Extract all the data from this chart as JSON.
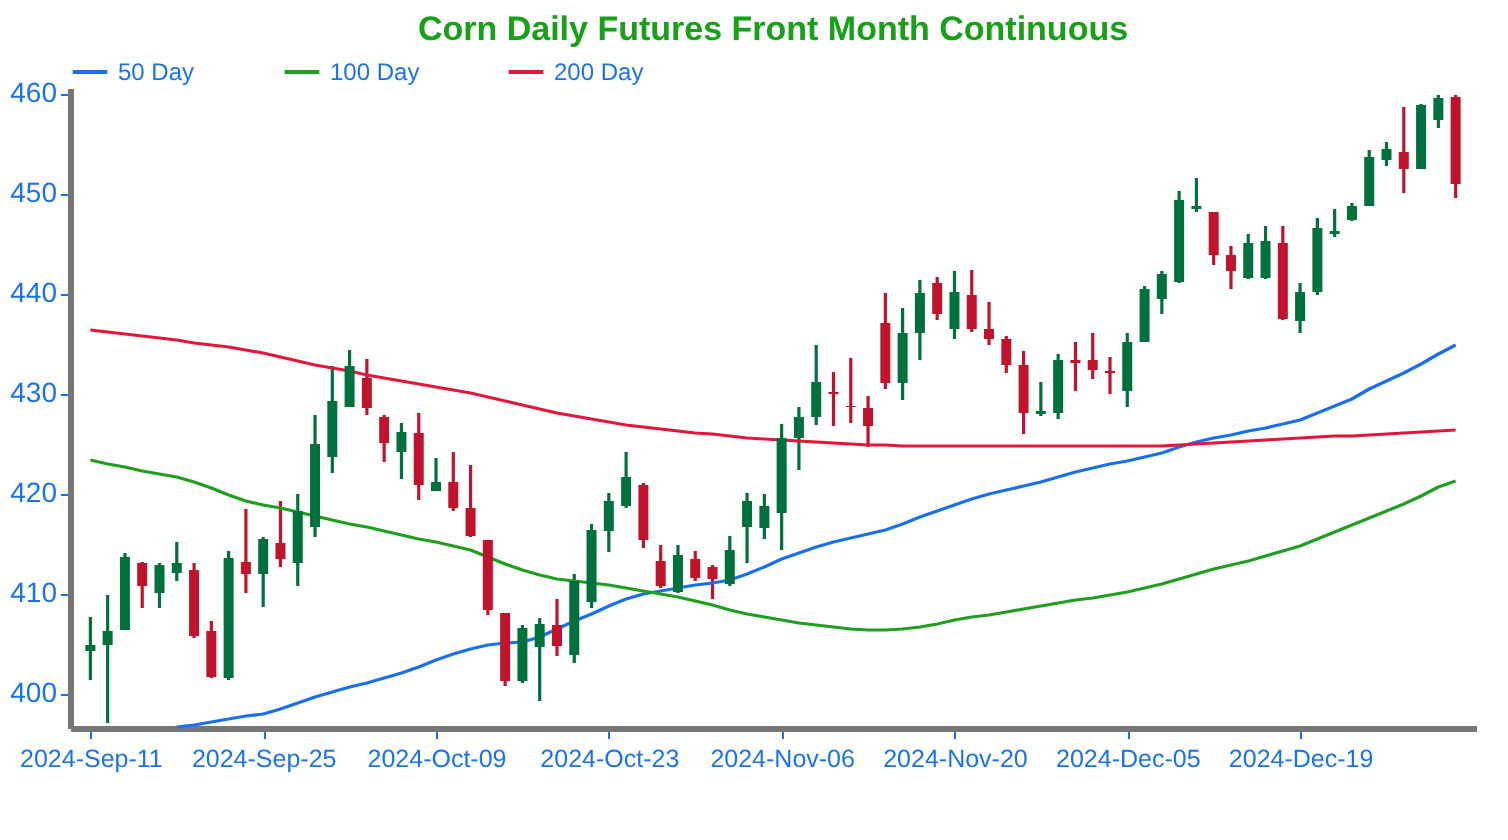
{
  "chart_data": {
    "type": "candlestick",
    "title": "Corn Daily Futures Front Month Continuous",
    "categories": [
      "2024-Sep-11",
      null,
      null,
      null,
      null,
      null,
      null,
      null,
      null,
      null,
      "2024-Sep-25",
      null,
      null,
      null,
      null,
      null,
      null,
      null,
      null,
      null,
      "2024-Oct-09",
      null,
      null,
      null,
      null,
      null,
      null,
      null,
      null,
      null,
      "2024-Oct-23",
      null,
      null,
      null,
      null,
      null,
      null,
      null,
      null,
      null,
      "2024-Nov-06",
      null,
      null,
      null,
      null,
      null,
      null,
      null,
      null,
      null,
      "2024-Nov-20",
      null,
      null,
      null,
      null,
      null,
      null,
      null,
      null,
      null,
      "2024-Dec-05",
      null,
      null,
      null,
      null,
      null,
      null,
      null,
      null,
      null,
      "2024-Dec-19",
      null,
      null,
      null,
      null,
      null,
      null,
      null,
      null,
      null
    ],
    "ohlc": [
      [
        404.2,
        407.6,
        401.3,
        404.8
      ],
      [
        404.8,
        409.8,
        397.0,
        406.2
      ],
      [
        406.3,
        414.0,
        406.3,
        413.6
      ],
      [
        413.0,
        413.1,
        408.5,
        410.7
      ],
      [
        410.0,
        413.0,
        408.5,
        412.8
      ],
      [
        412.0,
        415.1,
        411.2,
        413.0
      ],
      [
        412.3,
        413.0,
        405.5,
        405.7
      ],
      [
        406.2,
        407.2,
        401.5,
        401.6
      ],
      [
        401.5,
        414.2,
        401.3,
        413.5
      ],
      [
        413.1,
        418.4,
        410.0,
        411.9
      ],
      [
        411.9,
        415.6,
        408.6,
        415.4
      ],
      [
        415.0,
        419.2,
        412.6,
        413.4
      ],
      [
        413.0,
        419.9,
        410.7,
        418.2
      ],
      [
        416.6,
        427.8,
        415.6,
        424.9
      ],
      [
        423.6,
        432.7,
        422.0,
        429.2
      ],
      [
        428.6,
        434.3,
        428.6,
        432.7
      ],
      [
        431.5,
        433.4,
        427.8,
        428.5
      ],
      [
        427.6,
        427.8,
        423.1,
        425.0
      ],
      [
        424.1,
        427.0,
        421.4,
        426.1
      ],
      [
        426.0,
        428.0,
        419.3,
        420.8
      ],
      [
        420.2,
        423.5,
        420.2,
        421.1
      ],
      [
        421.1,
        424.1,
        418.2,
        418.5
      ],
      [
        418.5,
        422.8,
        415.6,
        415.7
      ],
      [
        415.3,
        415.3,
        407.8,
        408.3
      ],
      [
        408.0,
        408.0,
        400.7,
        401.2
      ],
      [
        401.2,
        406.8,
        401.0,
        406.5
      ],
      [
        404.6,
        407.5,
        399.2,
        406.9
      ],
      [
        406.8,
        409.4,
        403.7,
        404.7
      ],
      [
        403.8,
        411.9,
        403.0,
        411.2
      ],
      [
        409.1,
        416.9,
        408.5,
        416.3
      ],
      [
        416.2,
        420.0,
        414.1,
        419.2
      ],
      [
        418.7,
        424.1,
        418.5,
        421.6
      ],
      [
        420.8,
        421.0,
        414.5,
        415.3
      ],
      [
        413.2,
        414.8,
        410.5,
        410.7
      ],
      [
        410.1,
        414.8,
        410.0,
        413.8
      ],
      [
        413.4,
        414.2,
        411.2,
        411.5
      ],
      [
        412.6,
        412.8,
        409.4,
        411.4
      ],
      [
        410.9,
        415.7,
        410.7,
        414.3
      ],
      [
        416.6,
        420.0,
        413.0,
        419.2
      ],
      [
        416.5,
        419.9,
        415.4,
        418.7
      ],
      [
        418.0,
        426.9,
        414.3,
        425.5
      ],
      [
        425.5,
        428.6,
        422.3,
        427.6
      ],
      [
        427.6,
        434.8,
        426.8,
        431.1
      ],
      [
        430.1,
        432.1,
        426.7,
        429.9
      ],
      [
        428.7,
        433.5,
        427.0,
        428.6
      ],
      [
        428.5,
        429.7,
        424.6,
        426.7
      ],
      [
        437.0,
        440.0,
        430.4,
        431.0
      ],
      [
        431.0,
        438.5,
        429.3,
        436.0
      ],
      [
        436.0,
        441.3,
        433.3,
        440.0
      ],
      [
        441.0,
        441.6,
        437.3,
        437.9
      ],
      [
        436.4,
        442.2,
        435.4,
        440.1
      ],
      [
        439.8,
        442.3,
        436.1,
        436.4
      ],
      [
        436.4,
        439.1,
        434.8,
        435.4
      ],
      [
        435.4,
        435.7,
        432.0,
        432.8
      ],
      [
        432.8,
        434.2,
        425.9,
        428.0
      ],
      [
        427.9,
        431.1,
        427.7,
        428.2
      ],
      [
        428.0,
        433.9,
        427.4,
        433.3
      ],
      [
        433.3,
        435.1,
        430.2,
        433.0
      ],
      [
        433.3,
        436.0,
        431.4,
        432.3
      ],
      [
        432.2,
        433.6,
        429.9,
        432.0
      ],
      [
        430.2,
        436.0,
        428.6,
        435.1
      ],
      [
        435.1,
        440.7,
        435.1,
        440.4
      ],
      [
        439.4,
        442.2,
        437.9,
        441.9
      ],
      [
        441.1,
        450.2,
        441.0,
        449.3
      ],
      [
        448.4,
        451.5,
        448.1,
        448.7
      ],
      [
        448.1,
        448.1,
        442.8,
        443.8
      ],
      [
        443.8,
        444.7,
        440.4,
        442.2
      ],
      [
        441.5,
        445.9,
        441.4,
        445.0
      ],
      [
        441.5,
        446.7,
        441.4,
        445.2
      ],
      [
        445.0,
        446.7,
        437.3,
        437.4
      ],
      [
        437.2,
        441.0,
        436.0,
        440.1
      ],
      [
        440.1,
        447.5,
        439.8,
        446.5
      ],
      [
        445.9,
        448.4,
        445.6,
        446.2
      ],
      [
        447.3,
        449.0,
        447.2,
        448.7
      ],
      [
        448.7,
        454.3,
        448.7,
        453.6
      ],
      [
        453.3,
        455.1,
        452.7,
        454.4
      ],
      [
        454.1,
        458.6,
        450.0,
        452.4
      ],
      [
        452.4,
        458.9,
        452.4,
        458.8
      ],
      [
        457.3,
        459.8,
        456.5,
        459.5
      ],
      [
        459.6,
        459.8,
        449.5,
        450.9
      ]
    ],
    "colors": [
      "#00703c",
      "#00703c",
      "#00703c",
      "#c0142c",
      "#00703c",
      "#00703c",
      "#c0142c",
      "#c0142c",
      "#00703c",
      "#c0142c",
      "#00703c",
      "#c0142c",
      "#00703c",
      "#00703c",
      "#00703c",
      "#00703c",
      "#c0142c",
      "#c0142c",
      "#00703c",
      "#c0142c",
      "#00703c",
      "#c0142c",
      "#c0142c",
      "#c0142c",
      "#c0142c",
      "#00703c",
      "#00703c",
      "#c0142c",
      "#00703c",
      "#00703c",
      "#00703c",
      "#00703c",
      "#c0142c",
      "#c0142c",
      "#00703c",
      "#c0142c",
      "#c0142c",
      "#00703c",
      "#00703c",
      "#00703c",
      "#00703c",
      "#00703c",
      "#00703c",
      "#c0142c",
      "#c0142c",
      "#c0142c",
      "#c0142c",
      "#00703c",
      "#00703c",
      "#c0142c",
      "#00703c",
      "#c0142c",
      "#c0142c",
      "#c0142c",
      "#c0142c",
      "#00703c",
      "#00703c",
      "#c0142c",
      "#c0142c",
      "#c0142c",
      "#00703c",
      "#00703c",
      "#00703c",
      "#00703c",
      "#00703c",
      "#c0142c",
      "#c0142c",
      "#00703c",
      "#00703c",
      "#c0142c",
      "#00703c",
      "#00703c",
      "#00703c",
      "#00703c",
      "#00703c",
      "#00703c",
      "#c0142c",
      "#00703c",
      "#00703c",
      "#c0142c"
    ],
    "series": [
      {
        "name": "50 Day",
        "type": "line",
        "color": "#1a6ff0",
        "values": [
          null,
          null,
          null,
          null,
          null,
          396.6,
          396.8,
          397.1,
          397.4,
          397.7,
          397.9,
          398.4,
          399.0,
          399.6,
          400.1,
          400.6,
          401.0,
          401.5,
          402.0,
          402.6,
          403.3,
          403.9,
          404.4,
          404.8,
          405.0,
          405.1,
          405.6,
          406.4,
          407.2,
          407.9,
          408.7,
          409.4,
          409.9,
          410.2,
          410.5,
          410.8,
          411.0,
          411.3,
          411.9,
          412.6,
          413.4,
          414.0,
          414.6,
          415.1,
          415.5,
          415.9,
          416.3,
          416.9,
          417.6,
          418.2,
          418.8,
          419.4,
          419.9,
          420.3,
          420.7,
          421.1,
          421.6,
          422.1,
          422.5,
          422.9,
          423.2,
          423.6,
          424.0,
          424.6,
          425.1,
          425.5,
          425.8,
          426.2,
          426.5,
          426.9,
          427.3,
          428.0,
          428.7,
          429.4,
          430.4,
          431.2,
          432.0,
          432.9,
          433.9,
          434.8
        ]
      },
      {
        "name": "100 Day",
        "type": "line",
        "color": "#1f9e1f",
        "values": [
          423.3,
          422.9,
          422.6,
          422.2,
          421.9,
          421.6,
          421.1,
          420.5,
          419.8,
          419.2,
          418.8,
          418.5,
          418.1,
          417.7,
          417.3,
          416.9,
          416.6,
          416.2,
          415.8,
          415.4,
          415.1,
          414.7,
          414.3,
          413.6,
          412.9,
          412.3,
          411.8,
          411.4,
          411.2,
          411.0,
          410.8,
          410.5,
          410.2,
          409.9,
          409.6,
          409.2,
          408.8,
          408.3,
          407.9,
          407.6,
          407.3,
          407.0,
          406.8,
          406.6,
          406.4,
          406.3,
          406.3,
          406.4,
          406.6,
          406.9,
          407.3,
          407.6,
          407.8,
          408.1,
          408.4,
          408.7,
          409.0,
          409.3,
          409.5,
          409.8,
          410.1,
          410.5,
          410.9,
          411.4,
          411.9,
          412.4,
          412.8,
          413.2,
          413.7,
          414.2,
          414.7,
          415.4,
          416.1,
          416.8,
          417.5,
          418.2,
          418.9,
          419.7,
          420.6,
          421.2
        ]
      },
      {
        "name": "200 Day",
        "type": "line",
        "color": "#e3173c",
        "values": [
          436.3,
          436.1,
          435.9,
          435.7,
          435.5,
          435.3,
          435.0,
          434.8,
          434.6,
          434.3,
          434.0,
          433.6,
          433.2,
          432.8,
          432.5,
          432.2,
          431.8,
          431.5,
          431.2,
          430.9,
          430.6,
          430.3,
          430.0,
          429.6,
          429.2,
          428.8,
          428.4,
          428.0,
          427.7,
          427.4,
          427.1,
          426.8,
          426.6,
          426.4,
          426.2,
          426.0,
          425.9,
          425.7,
          425.5,
          425.4,
          425.3,
          425.2,
          425.1,
          425.0,
          424.9,
          424.8,
          424.8,
          424.7,
          424.7,
          424.7,
          424.7,
          424.7,
          424.7,
          424.7,
          424.7,
          424.7,
          424.7,
          424.7,
          424.7,
          424.7,
          424.7,
          424.7,
          424.7,
          424.8,
          424.9,
          425.0,
          425.1,
          425.2,
          425.3,
          425.4,
          425.5,
          425.6,
          425.7,
          425.7,
          425.8,
          425.9,
          426.0,
          426.1,
          426.2,
          426.3
        ]
      }
    ],
    "ylim": [
      396.5,
      460.5
    ],
    "yticks": [
      400,
      410,
      420,
      430,
      440,
      450,
      460
    ],
    "legend": "top"
  }
}
